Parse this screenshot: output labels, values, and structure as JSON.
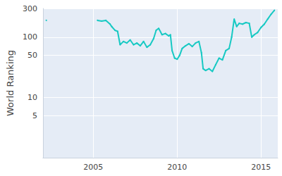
{
  "chart_data": {
    "type": "line",
    "y_label": "World Ranking",
    "x": [
      2002.2,
      2003.0,
      2005.25,
      2005.5,
      2005.75,
      2006.0,
      2006.1,
      2006.3,
      2006.45,
      2006.6,
      2006.8,
      2007.0,
      2007.2,
      2007.4,
      2007.6,
      2007.8,
      2008.0,
      2008.2,
      2008.4,
      2008.6,
      2008.75,
      2008.9,
      2009.1,
      2009.3,
      2009.5,
      2009.6,
      2009.7,
      2009.85,
      2010.0,
      2010.15,
      2010.3,
      2010.5,
      2010.7,
      2010.9,
      2011.1,
      2011.3,
      2011.45,
      2011.55,
      2011.7,
      2011.9,
      2012.1,
      2012.3,
      2012.5,
      2012.7,
      2012.9,
      2013.1,
      2013.25,
      2013.4,
      2013.55,
      2013.7,
      2013.9,
      2014.1,
      2014.3,
      2014.45,
      2014.6,
      2014.8,
      2015.0,
      2015.2,
      2015.4,
      2015.6,
      2015.8
    ],
    "values": [
      190,
      null,
      190,
      185,
      190,
      165,
      150,
      130,
      125,
      75,
      85,
      80,
      90,
      75,
      80,
      72,
      85,
      68,
      75,
      95,
      130,
      140,
      110,
      115,
      105,
      110,
      60,
      45,
      43,
      50,
      65,
      72,
      78,
      70,
      80,
      85,
      55,
      30,
      28,
      30,
      27,
      35,
      45,
      42,
      60,
      65,
      100,
      200,
      150,
      170,
      165,
      175,
      170,
      100,
      110,
      120,
      145,
      165,
      200,
      240,
      280
    ],
    "color": "#17c9c3",
    "xlim": [
      2002,
      2016
    ],
    "xticks": [
      2005,
      2010,
      2015
    ],
    "ylim": [
      1,
      300
    ],
    "yticks": [
      5,
      10,
      50,
      100,
      300
    ],
    "log": "y",
    "grid": true
  }
}
